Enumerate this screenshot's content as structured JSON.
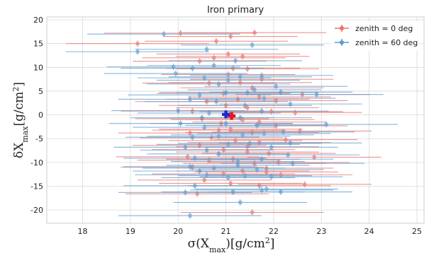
{
  "chart_data": {
    "type": "scatter",
    "title": "Iron primary",
    "xlabel": "σ(X_max)[g/cm²]",
    "ylabel": "δX_max[g/cm²]",
    "xlim": [
      17.25,
      25.15
    ],
    "ylim": [
      -22.8,
      20.6
    ],
    "xticks": [
      18,
      19,
      20,
      21,
      22,
      23,
      24,
      25
    ],
    "yticks": [
      -20,
      -15,
      -10,
      -5,
      0,
      5,
      10,
      15,
      20
    ],
    "grid": true,
    "legend_position": "top-right",
    "colors": {
      "red": "#e8736b",
      "blue": "#5b9bd0",
      "red_mean": "#e3151e",
      "blue_mean": "#1a2ccf"
    },
    "series": [
      {
        "name": "zenith = 0 deg",
        "color": "#e8736b",
        "mean": [
          21.12,
          -0.2
        ],
        "points": [
          [
            19.15,
            15.0,
            1.5
          ],
          [
            20.05,
            17.2,
            1.6
          ],
          [
            20.8,
            15.5,
            1.5
          ],
          [
            21.1,
            16.5,
            1.4
          ],
          [
            21.6,
            17.3,
            1.5
          ],
          [
            20.45,
            11.3,
            1.4
          ],
          [
            20.75,
            12.0,
            1.5
          ],
          [
            21.05,
            12.8,
            1.5
          ],
          [
            21.35,
            12.3,
            1.4
          ],
          [
            21.15,
            9.8,
            1.4
          ],
          [
            21.45,
            9.7,
            1.5
          ],
          [
            21.05,
            8.5,
            1.4
          ],
          [
            21.3,
            6.8,
            1.5
          ],
          [
            21.55,
            5.7,
            1.5
          ],
          [
            20.95,
            4.5,
            1.4
          ],
          [
            21.7,
            3.8,
            1.5
          ],
          [
            22.05,
            3.0,
            1.5
          ],
          [
            22.6,
            4.3,
            1.4
          ],
          [
            21.25,
            3.3,
            1.5
          ],
          [
            21.0,
            2.0,
            1.4
          ],
          [
            21.45,
            1.5,
            1.5
          ],
          [
            21.95,
            0.7,
            1.5
          ],
          [
            22.45,
            0.5,
            1.4
          ],
          [
            20.3,
            0.8,
            1.5
          ],
          [
            20.5,
            -0.8,
            1.4
          ],
          [
            20.9,
            -1.8,
            1.5
          ],
          [
            21.35,
            -1.0,
            1.5
          ],
          [
            21.7,
            -1.5,
            1.4
          ],
          [
            22.05,
            -2.3,
            1.5
          ],
          [
            21.1,
            -3.0,
            1.5
          ],
          [
            21.55,
            -3.7,
            1.4
          ],
          [
            20.25,
            -3.8,
            1.5
          ],
          [
            20.7,
            -4.8,
            1.5
          ],
          [
            21.2,
            -5.4,
            1.4
          ],
          [
            21.7,
            -5.8,
            1.5
          ],
          [
            22.25,
            -5.2,
            1.5
          ],
          [
            20.45,
            -6.4,
            1.4
          ],
          [
            20.95,
            -7.3,
            1.5
          ],
          [
            21.45,
            -7.8,
            1.5
          ],
          [
            21.9,
            -8.1,
            1.4
          ],
          [
            20.2,
            -8.8,
            1.5
          ],
          [
            20.65,
            -9.5,
            1.5
          ],
          [
            21.15,
            -9.3,
            1.4
          ],
          [
            21.6,
            -10.2,
            1.5
          ],
          [
            22.1,
            -10.0,
            1.5
          ],
          [
            22.85,
            -8.9,
            1.4
          ],
          [
            20.3,
            -11.0,
            1.5
          ],
          [
            20.95,
            -12.4,
            1.5
          ],
          [
            21.35,
            -11.8,
            1.4
          ],
          [
            21.85,
            -12.0,
            1.5
          ],
          [
            22.15,
            -12.6,
            1.5
          ],
          [
            20.55,
            -13.7,
            1.4
          ],
          [
            21.1,
            -14.4,
            1.5
          ],
          [
            21.7,
            -14.9,
            1.5
          ],
          [
            22.65,
            -14.6,
            1.4
          ],
          [
            20.4,
            -16.6,
            1.5
          ],
          [
            21.55,
            -20.5,
            1.5
          ],
          [
            20.85,
            -3.2,
            1.4
          ],
          [
            22.55,
            -3.4,
            1.5
          ],
          [
            21.45,
            -6.7,
            1.5
          ],
          [
            20.65,
            6.7,
            1.4
          ],
          [
            21.75,
            7.5,
            1.5
          ],
          [
            20.6,
            2.8,
            1.5
          ],
          [
            21.85,
            -11.2,
            1.4
          ]
        ]
      },
      {
        "name": "zenith = 60 deg",
        "color": "#5b9bd0",
        "mean": [
          21.0,
          0.1
        ],
        "points": [
          [
            19.7,
            17.0,
            1.6
          ],
          [
            19.15,
            13.3,
            1.5
          ],
          [
            20.6,
            13.8,
            1.5
          ],
          [
            21.55,
            14.7,
            1.5
          ],
          [
            19.9,
            10.1,
            1.4
          ],
          [
            19.95,
            8.7,
            1.5
          ],
          [
            20.3,
            9.8,
            1.5
          ],
          [
            20.75,
            10.4,
            1.4
          ],
          [
            21.3,
            8.0,
            1.5
          ],
          [
            21.75,
            8.3,
            1.5
          ],
          [
            20.55,
            7.8,
            1.4
          ],
          [
            20.85,
            6.5,
            1.5
          ],
          [
            20.45,
            4.2,
            1.5
          ],
          [
            21.0,
            4.7,
            1.4
          ],
          [
            21.45,
            4.7,
            1.5
          ],
          [
            22.15,
            4.8,
            1.5
          ],
          [
            22.9,
            4.3,
            1.4
          ],
          [
            20.25,
            3.3,
            1.5
          ],
          [
            20.8,
            2.8,
            1.5
          ],
          [
            21.4,
            2.0,
            1.4
          ],
          [
            21.8,
            3.5,
            1.5
          ],
          [
            22.35,
            2.3,
            1.5
          ],
          [
            20.0,
            0.9,
            1.4
          ],
          [
            20.65,
            0.4,
            1.5
          ],
          [
            21.3,
            -0.6,
            1.5
          ],
          [
            21.75,
            0.8,
            1.4
          ],
          [
            20.05,
            -1.8,
            1.5
          ],
          [
            20.55,
            -2.6,
            1.5
          ],
          [
            21.0,
            -1.8,
            1.4
          ],
          [
            21.65,
            -2.2,
            1.5
          ],
          [
            22.2,
            -3.6,
            1.5
          ],
          [
            20.3,
            -4.7,
            1.4
          ],
          [
            20.85,
            -4.5,
            1.5
          ],
          [
            21.35,
            -4.2,
            1.5
          ],
          [
            21.8,
            -3.9,
            1.4
          ],
          [
            22.35,
            -5.9,
            1.5
          ],
          [
            20.15,
            -6.8,
            1.5
          ],
          [
            20.6,
            -7.4,
            1.4
          ],
          [
            21.05,
            -6.2,
            1.5
          ],
          [
            21.5,
            -6.0,
            1.5
          ],
          [
            21.95,
            -6.8,
            1.4
          ],
          [
            20.35,
            -9.1,
            1.5
          ],
          [
            20.85,
            -8.2,
            1.5
          ],
          [
            21.25,
            -9.8,
            1.4
          ],
          [
            21.75,
            -9.3,
            1.5
          ],
          [
            22.3,
            -8.4,
            1.5
          ],
          [
            20.25,
            -10.9,
            1.4
          ],
          [
            20.75,
            -11.2,
            1.5
          ],
          [
            21.25,
            -10.6,
            1.5
          ],
          [
            21.65,
            -11.5,
            1.4
          ],
          [
            22.4,
            -10.2,
            1.5
          ],
          [
            20.6,
            -12.6,
            1.5
          ],
          [
            21.4,
            -12.8,
            1.4
          ],
          [
            21.95,
            -13.0,
            1.5
          ],
          [
            20.35,
            -14.9,
            1.5
          ],
          [
            21.05,
            -13.2,
            1.4
          ],
          [
            21.75,
            -15.8,
            1.5
          ],
          [
            22.15,
            -16.2,
            1.5
          ],
          [
            20.15,
            -16.3,
            1.4
          ],
          [
            21.15,
            -16.2,
            1.5
          ],
          [
            21.85,
            -15.6,
            1.5
          ],
          [
            21.3,
            -18.4,
            1.4
          ],
          [
            20.25,
            -21.2,
            1.5
          ],
          [
            21.05,
            7.3,
            1.5
          ],
          [
            21.6,
            5.3,
            1.4
          ],
          [
            20.5,
            -0.6,
            1.5
          ],
          [
            22.05,
            6.0,
            1.5
          ],
          [
            20.45,
            -11.8,
            1.4
          ],
          [
            23.1,
            -2.0,
            1.5
          ],
          [
            21.2,
            11.4,
            1.4
          ]
        ]
      }
    ]
  }
}
